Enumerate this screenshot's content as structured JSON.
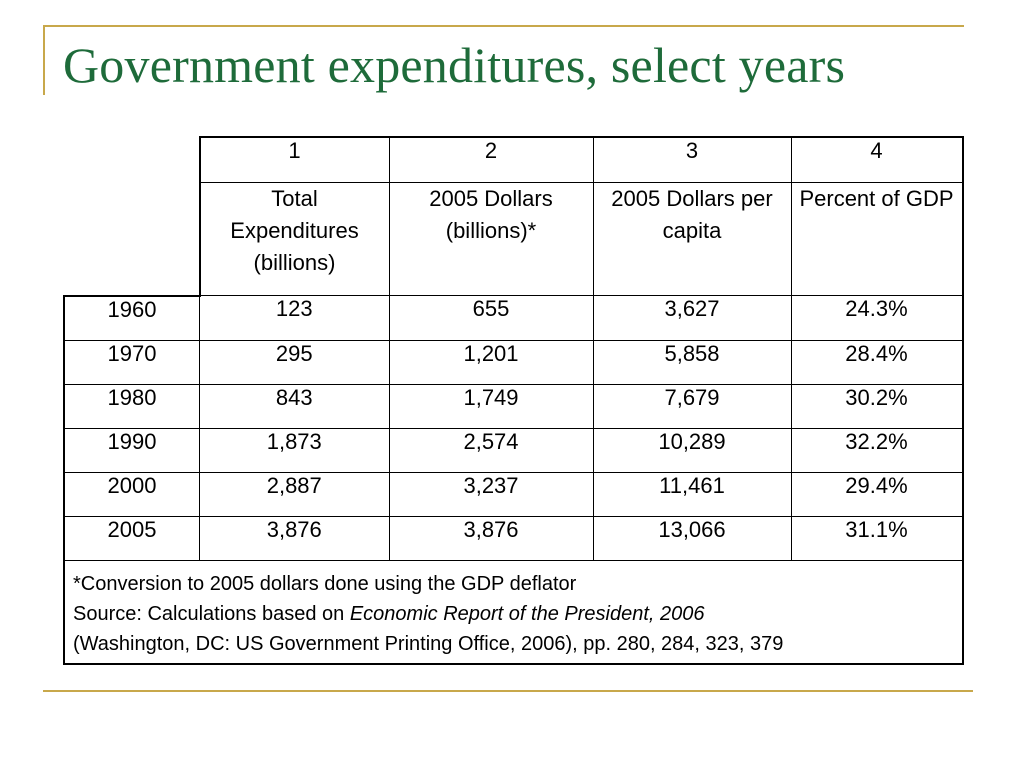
{
  "title": "Government expenditures, select years",
  "table": {
    "column_numbers": [
      "1",
      "2",
      "3",
      "4"
    ],
    "column_headers": [
      "Total Expenditures (billions)",
      "2005 Dollars (billions)*",
      "2005 Dollars per capita",
      "Percent of GDP"
    ],
    "rows": [
      {
        "year": "1960",
        "cells": [
          "123",
          "655",
          "3,627",
          "24.3%"
        ]
      },
      {
        "year": "1970",
        "cells": [
          "295",
          "1,201",
          "5,858",
          "28.4%"
        ]
      },
      {
        "year": "1980",
        "cells": [
          "843",
          "1,749",
          "7,679",
          "30.2%"
        ]
      },
      {
        "year": "1990",
        "cells": [
          "1,873",
          "2,574",
          "10,289",
          "32.2%"
        ]
      },
      {
        "year": "2000",
        "cells": [
          "2,887",
          "3,237",
          "11,461",
          "29.4%"
        ]
      },
      {
        "year": "2005",
        "cells": [
          "3,876",
          "3,876",
          "13,066",
          "31.1%"
        ]
      }
    ]
  },
  "footnote": {
    "line1": "*Conversion to 2005 dollars done using the GDP deflator",
    "source_prefix": "Source: Calculations based on ",
    "source_title": "Economic Report of the President, 2006",
    "source_rest": "(Washington, DC: US Government Printing Office, 2006), pp. 280, 284, 323, 379"
  },
  "colors": {
    "title": "#1e6b3a",
    "accent_line": "#c8a84b"
  }
}
